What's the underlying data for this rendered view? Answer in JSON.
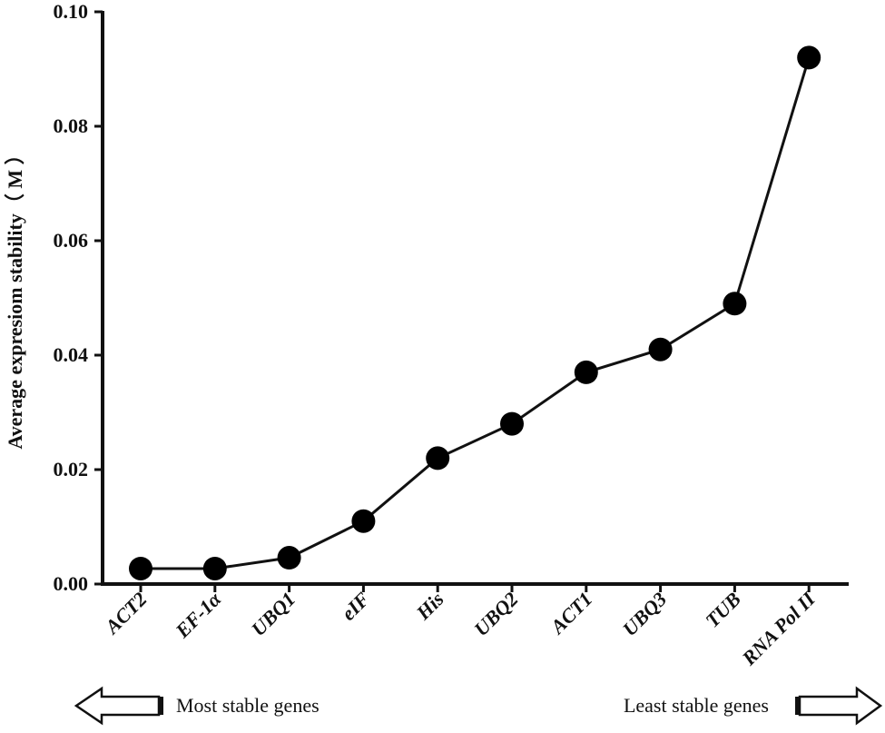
{
  "chart_data": {
    "type": "line",
    "title": "",
    "xlabel": "",
    "ylabel": "Average expresiom stability（ M ）",
    "ylim": [
      0,
      0.1
    ],
    "yticks": [
      "0.00",
      "0.02",
      "0.04",
      "0.06",
      "0.08",
      "0.10"
    ],
    "categories": [
      "ACT2",
      "EF-1α",
      "UBQ1",
      "eIF",
      "His",
      "UBQ2",
      "ACT1",
      "UBQ3",
      "TUB",
      "RNA Pol II"
    ],
    "series": [
      {
        "values": [
          0.0027,
          0.0027,
          0.0046,
          0.011,
          0.022,
          0.028,
          0.037,
          0.041,
          0.049,
          0.092
        ]
      }
    ],
    "grid": false,
    "legend": "none",
    "line_color": "#111111",
    "marker_color": "#000000"
  },
  "annotations": {
    "most_stable": "Most stable genes",
    "least_stable": "Least stable genes"
  }
}
